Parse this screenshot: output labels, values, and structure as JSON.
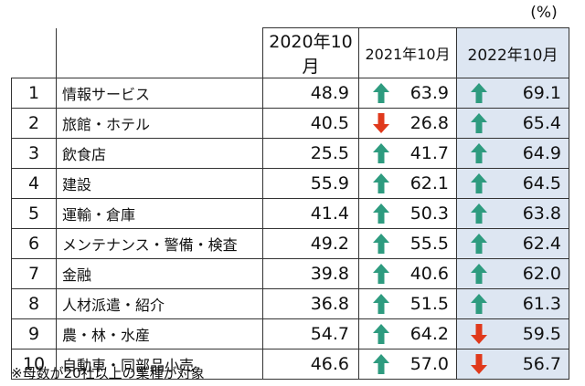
{
  "unit_label": "(%)",
  "note": "※母数が20社以上の業種が対象",
  "colors": {
    "up": "#2e9b7f",
    "down": "#e0391c",
    "highlight": "#dde6f2"
  },
  "chart_data": {
    "type": "table",
    "columns": [
      "2020年10月",
      "2021年10月",
      "2022年10月"
    ],
    "rows": [
      {
        "rank": "1",
        "industry": "情報サービス",
        "v2020": "48.9",
        "v2021": "63.9",
        "d2021": "up",
        "v2022": "69.1",
        "d2022": "up"
      },
      {
        "rank": "2",
        "industry": "旅館・ホテル",
        "v2020": "40.5",
        "v2021": "26.8",
        "d2021": "down",
        "v2022": "65.4",
        "d2022": "up"
      },
      {
        "rank": "3",
        "industry": "飲食店",
        "v2020": "25.5",
        "v2021": "41.7",
        "d2021": "up",
        "v2022": "64.9",
        "d2022": "up"
      },
      {
        "rank": "4",
        "industry": "建設",
        "v2020": "55.9",
        "v2021": "62.1",
        "d2021": "up",
        "v2022": "64.5",
        "d2022": "up"
      },
      {
        "rank": "5",
        "industry": "運輸・倉庫",
        "v2020": "41.4",
        "v2021": "50.3",
        "d2021": "up",
        "v2022": "63.8",
        "d2022": "up"
      },
      {
        "rank": "6",
        "industry": "メンテナンス・警備・検査",
        "v2020": "49.2",
        "v2021": "55.5",
        "d2021": "up",
        "v2022": "62.4",
        "d2022": "up"
      },
      {
        "rank": "7",
        "industry": "金融",
        "v2020": "39.8",
        "v2021": "40.6",
        "d2021": "up",
        "v2022": "62.0",
        "d2022": "up"
      },
      {
        "rank": "8",
        "industry": "人材派遣・紹介",
        "v2020": "36.8",
        "v2021": "51.5",
        "d2021": "up",
        "v2022": "61.3",
        "d2022": "up"
      },
      {
        "rank": "9",
        "industry": "農・林・水産",
        "v2020": "54.7",
        "v2021": "64.2",
        "d2021": "up",
        "v2022": "59.5",
        "d2022": "down"
      },
      {
        "rank": "10",
        "industry": "自動車・同部品小売",
        "v2020": "46.6",
        "v2021": "57.0",
        "d2021": "up",
        "v2022": "56.7",
        "d2022": "down"
      }
    ]
  }
}
